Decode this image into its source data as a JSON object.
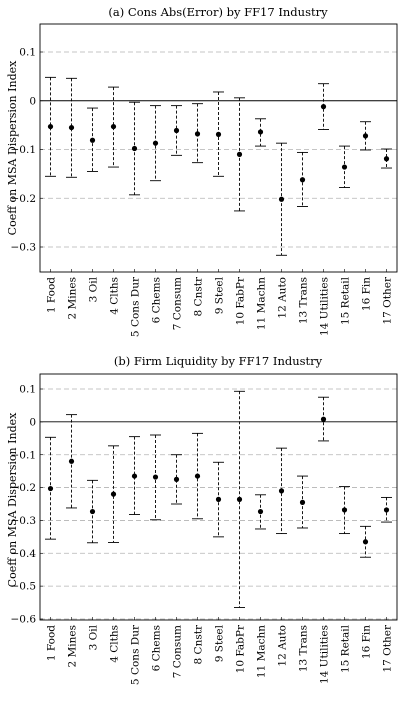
{
  "figure": {
    "ylabel": "Coeff on MSA Dispersion Index"
  },
  "chart_data": [
    {
      "type": "errorbar",
      "title": "(a) Cons Abs(Error) by FF17 Industry",
      "xlabel": "",
      "ylabel": "Coeff on MSA Dispersion Index",
      "ylim": [
        -0.35,
        0.15
      ],
      "yticks": [
        0.1,
        0,
        -0.1,
        -0.2,
        -0.3
      ],
      "ytick_labels": [
        "0.1",
        "0",
        "−0.1",
        "−0.2",
        "−0.3"
      ],
      "grid": "horizontal dashed",
      "zero_line": true,
      "categories": [
        "1 Food",
        "2 Mines",
        "3 Oil",
        "4 Clths",
        "5 Cons Dur",
        "6 Chems",
        "7 Consum",
        "8 Cnstr",
        "9 Steel",
        "10 FabPr",
        "11 Machn",
        "12 Auto",
        "13 Trans",
        "14 Utilities",
        "15 Retail",
        "16 Fin",
        "17 Other"
      ],
      "values": [
        -0.053,
        -0.055,
        -0.081,
        -0.053,
        -0.098,
        -0.087,
        -0.061,
        -0.068,
        -0.069,
        -0.11,
        -0.064,
        -0.202,
        -0.162,
        -0.012,
        -0.136,
        -0.072,
        -0.119
      ],
      "upper": [
        0.048,
        0.046,
        -0.015,
        0.028,
        -0.003,
        -0.01,
        -0.01,
        -0.006,
        0.018,
        0.006,
        -0.037,
        -0.087,
        -0.106,
        0.035,
        -0.093,
        -0.043,
        -0.099
      ],
      "lower": [
        -0.155,
        -0.157,
        -0.145,
        -0.136,
        -0.193,
        -0.164,
        -0.112,
        -0.127,
        -0.155,
        -0.226,
        -0.093,
        -0.317,
        -0.217,
        -0.059,
        -0.178,
        -0.101,
        -0.138
      ]
    },
    {
      "type": "errorbar",
      "title": "(b) Firm Liquidity by FF17 Industry",
      "xlabel": "",
      "ylabel": "Coeff on MSA Dispersion Index",
      "ylim": [
        -0.6,
        0.15
      ],
      "yticks": [
        0.1,
        0,
        -0.1,
        -0.2,
        -0.3,
        -0.4,
        -0.5,
        -0.6
      ],
      "ytick_labels": [
        "0.1",
        "0",
        "−0.1",
        "−0.2",
        "−0.3",
        "−0.4",
        "−0.5",
        "−0.6"
      ],
      "grid": "horizontal dashed",
      "zero_line": true,
      "categories": [
        "1 Food",
        "2 Mines",
        "3 Oil",
        "4 Clths",
        "5 Cons Dur",
        "6 Chems",
        "7 Consum",
        "8 Cnstr",
        "9 Steel",
        "10 FabPr",
        "11 Machn",
        "12 Auto",
        "13 Trans",
        "14 Utilities",
        "15 Retail",
        "16 Fin",
        "17 Other"
      ],
      "values": [
        -0.203,
        -0.12,
        -0.273,
        -0.22,
        -0.165,
        -0.168,
        -0.175,
        -0.165,
        -0.236,
        -0.236,
        -0.273,
        -0.21,
        -0.245,
        0.008,
        -0.268,
        -0.365,
        -0.268
      ],
      "upper": [
        -0.047,
        0.022,
        -0.178,
        -0.073,
        -0.045,
        -0.04,
        -0.1,
        -0.035,
        -0.123,
        0.093,
        -0.222,
        -0.08,
        -0.165,
        0.075,
        -0.197,
        -0.318,
        -0.23
      ],
      "lower": [
        -0.357,
        -0.262,
        -0.368,
        -0.367,
        -0.282,
        -0.298,
        -0.25,
        -0.295,
        -0.35,
        -0.565,
        -0.326,
        -0.34,
        -0.323,
        -0.058,
        -0.34,
        -0.412,
        -0.305
      ]
    }
  ]
}
